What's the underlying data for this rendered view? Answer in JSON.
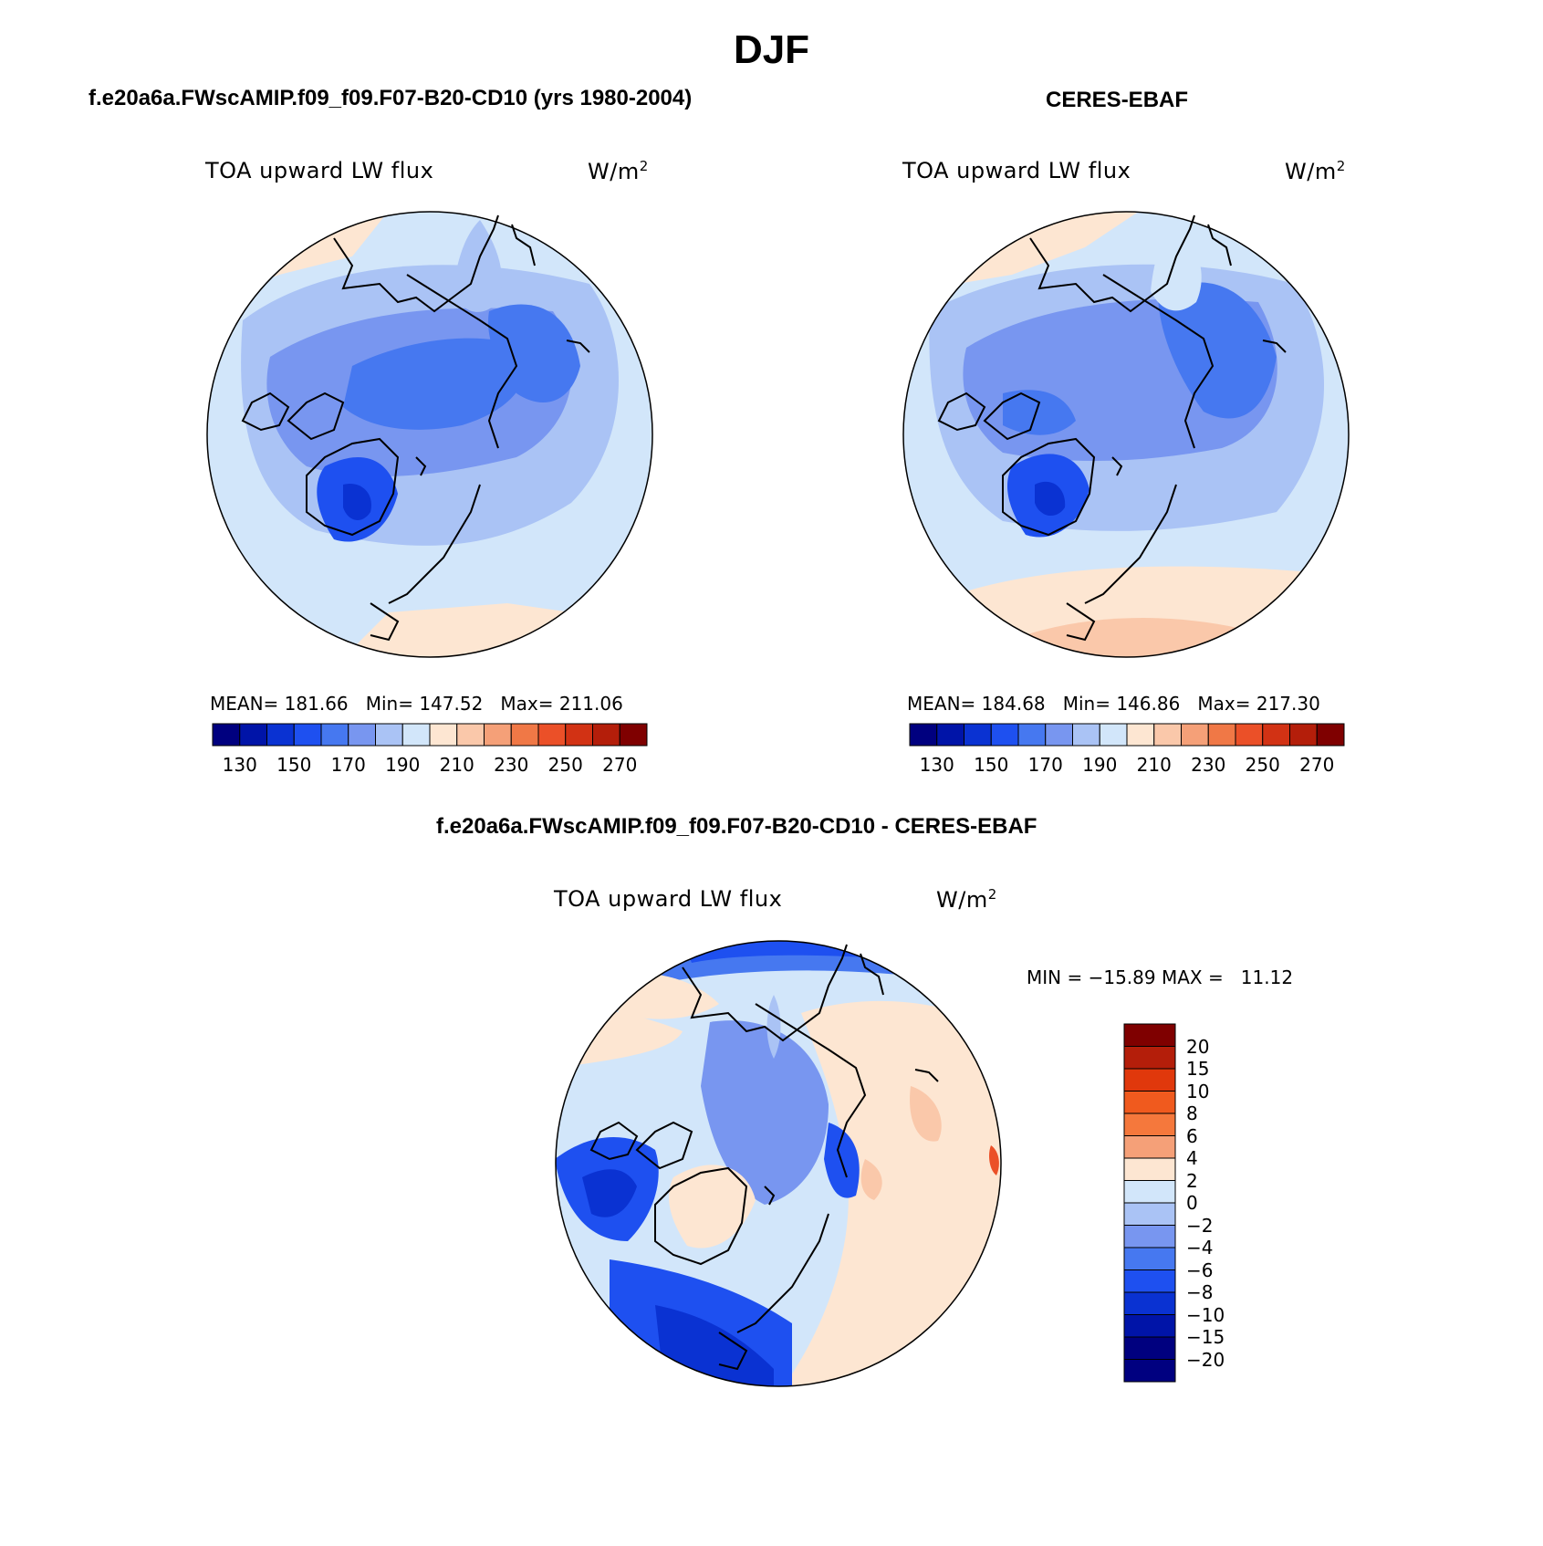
{
  "figure": {
    "season_title": "DJF"
  },
  "panels": [
    {
      "id": "model",
      "header": "f.e20a6a.FWscAMIP.f09_f09.F07-B20-CD10 (yrs 1980-2004)",
      "variable": "TOA upward LW flux",
      "units": "W/m",
      "units_exp": "2",
      "stats": {
        "mean_label": "MEAN=",
        "mean": "181.66",
        "min_label": "Min=",
        "min": "147.52",
        "max_label": "Max=",
        "max": "211.06"
      }
    },
    {
      "id": "obs",
      "header": "CERES-EBAF",
      "variable": "TOA upward LW flux",
      "units": "W/m",
      "units_exp": "2",
      "stats": {
        "mean_label": "MEAN=",
        "mean": "184.68",
        "min_label": "Min=",
        "min": "146.86",
        "max_label": "Max=",
        "max": "217.30"
      }
    },
    {
      "id": "diff",
      "header": "f.e20a6a.FWscAMIP.f09_f09.F07-B20-CD10 - CERES-EBAF",
      "variable": "TOA upward LW flux",
      "units": "W/m",
      "units_exp": "2",
      "stats_text": "MIN = −15.89 MAX =   11.12"
    }
  ],
  "colorbar_abs": {
    "tick_labels": [
      "130",
      "150",
      "170",
      "190",
      "210",
      "230",
      "250",
      "270"
    ],
    "colors": [
      "#00007f",
      "#0014a8",
      "#0a32d2",
      "#1e50f0",
      "#4678f0",
      "#7896f0",
      "#aac3f5",
      "#d2e6fa",
      "#fde6d2",
      "#fac8aa",
      "#f5a078",
      "#f07846",
      "#eb5028",
      "#d23214",
      "#b41e0a",
      "#7f0000"
    ]
  },
  "colorbar_diff": {
    "tick_labels": [
      "20",
      "15",
      "10",
      "8",
      "6",
      "4",
      "2",
      "0",
      "−2",
      "−4",
      "−6",
      "−8",
      "−10",
      "−15",
      "−20"
    ],
    "colors_top_to_bottom": [
      "#7f0000",
      "#b41e0a",
      "#e0380c",
      "#f05a1e",
      "#f5783c",
      "#f5a078",
      "#fde6d2",
      "#d2e6fa",
      "#aac3f5",
      "#7896f0",
      "#4678f0",
      "#1e50f0",
      "#0a32d2",
      "#0014a8",
      "#00007f",
      "#000080"
    ]
  },
  "map_colors": {
    "ocean_warm": "#fde6d2",
    "light": "#d2e6fa",
    "pale": "#aac3f5",
    "mid": "#7896f0",
    "blue": "#4678f0",
    "deep": "#1e50f0",
    "deeper": "#0a32d2",
    "warm2": "#fac8aa",
    "red": "#eb5028"
  }
}
